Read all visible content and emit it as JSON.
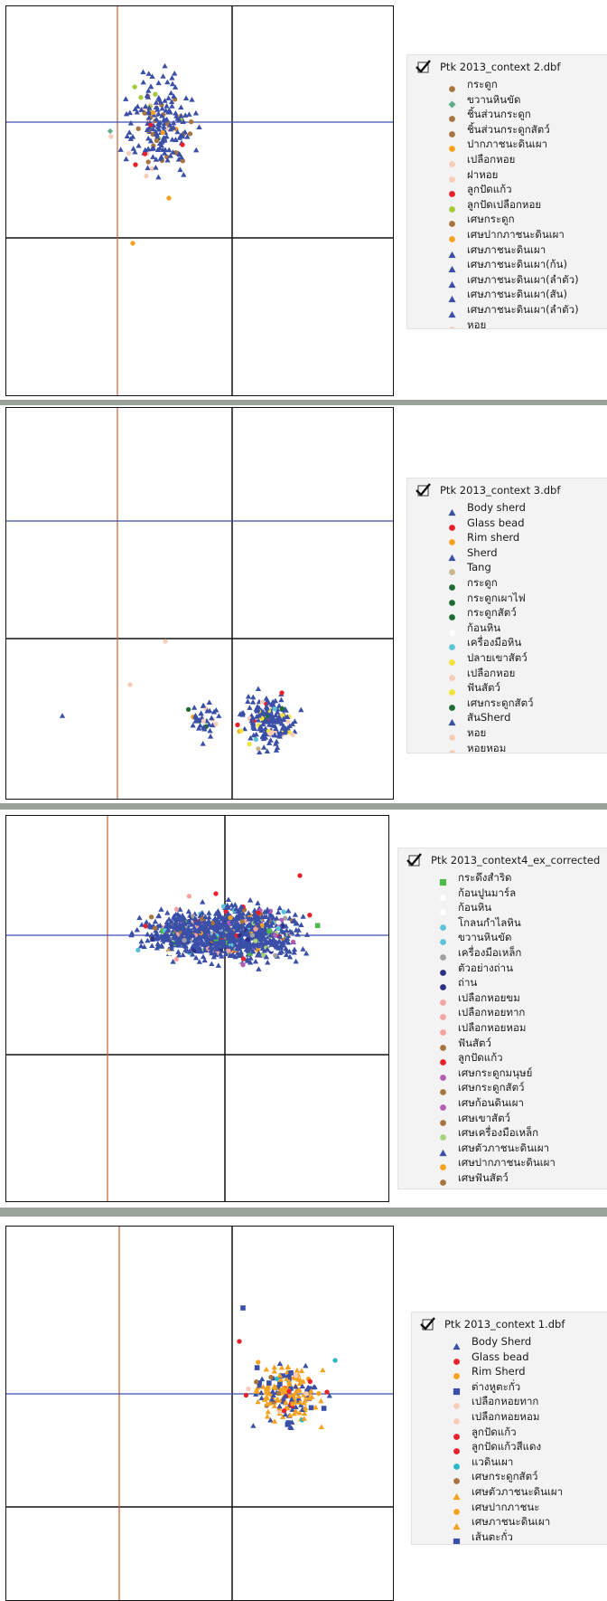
{
  "chart_data": [
    {
      "type": "scatter",
      "layer_name": "Ptk 2013_context 2.dbf",
      "series": [
        {
          "name": "กระดูก",
          "color": "#a9753e",
          "marker": "circle"
        },
        {
          "name": "ขวานหินขัด",
          "color": "#5fae89",
          "marker": "diamond"
        },
        {
          "name": "ชิ้นส่วนกระดูก",
          "color": "#a9753e",
          "marker": "circle"
        },
        {
          "name": "ชิ้นส่วนกระดูกสัตว์",
          "color": "#a9753e",
          "marker": "circle"
        },
        {
          "name": "ปากภาชนะดินเผา",
          "color": "#f6a21e",
          "marker": "circle"
        },
        {
          "name": "เปลือกหอย",
          "color": "#f8cdb8",
          "marker": "circle"
        },
        {
          "name": "ฝาหอย",
          "color": "#f8cdb8",
          "marker": "circle"
        },
        {
          "name": "ลูกปัดแก้ว",
          "color": "#e8202a",
          "marker": "circle"
        },
        {
          "name": "ลูกปัดเปลือกหอย",
          "color": "#a6c93c",
          "marker": "circle"
        },
        {
          "name": "เศษกระดูก",
          "color": "#a9753e",
          "marker": "circle"
        },
        {
          "name": "เศษปากภาชนะดินเผา",
          "color": "#f6a21e",
          "marker": "circle"
        },
        {
          "name": "เศษภาชนะดินเผา",
          "color": "#3a4fa8",
          "marker": "triangle"
        },
        {
          "name": "เศษภาชนะดินเผา(ก้น)",
          "color": "#3a4fa8",
          "marker": "triangle"
        },
        {
          "name": "เศษภาชนะดินเผา(ลำตัว)",
          "color": "#3a4fa8",
          "marker": "triangle"
        },
        {
          "name": "เศษภาชนะดินเผา(สัน)",
          "color": "#3a4fa8",
          "marker": "triangle"
        },
        {
          "name": "เศษภาชนะดินเผา(ลำตัว)",
          "color": "#3a4fa8",
          "marker": "triangle"
        },
        {
          "name": "หอย",
          "color": "#f8cdb8",
          "marker": "circle"
        }
      ]
    },
    {
      "type": "scatter",
      "layer_name": "Ptk 2013_context 3.dbf",
      "series": [
        {
          "name": "Body sherd",
          "color": "#3a4fa8",
          "marker": "triangle"
        },
        {
          "name": "Glass bead",
          "color": "#e8202a",
          "marker": "circle"
        },
        {
          "name": "Rim sherd",
          "color": "#f6a21e",
          "marker": "circle"
        },
        {
          "name": "Sherd",
          "color": "#3a4fa8",
          "marker": "triangle"
        },
        {
          "name": "Tang",
          "color": "#c9b48c",
          "marker": "circle"
        },
        {
          "name": "กระดูก",
          "color": "#1f6b35",
          "marker": "circle"
        },
        {
          "name": "กระดูกเผาไฟ",
          "color": "#1f6b35",
          "marker": "circle"
        },
        {
          "name": "กระดูกสัตว์",
          "color": "#1f6b35",
          "marker": "circle"
        },
        {
          "name": "ก้อนหิน",
          "color": "#ffffff",
          "marker": "circle"
        },
        {
          "name": "เครื่องมือหิน",
          "color": "#5cc4d6",
          "marker": "circle"
        },
        {
          "name": "ปลายเขาสัตว์",
          "color": "#f2e43a",
          "marker": "circle"
        },
        {
          "name": "เปลือกหอย",
          "color": "#f8cdb8",
          "marker": "circle"
        },
        {
          "name": "ฟันสัตว์",
          "color": "#f2e43a",
          "marker": "circle"
        },
        {
          "name": "เศษกระดูกสัตว์",
          "color": "#1f6b35",
          "marker": "circle"
        },
        {
          "name": "สันSherd",
          "color": "#3a4fa8",
          "marker": "triangle"
        },
        {
          "name": "หอย",
          "color": "#f8cdb8",
          "marker": "circle"
        },
        {
          "name": "หอยหอม",
          "color": "#f8cdb8",
          "marker": "circle"
        }
      ]
    },
    {
      "type": "scatter",
      "layer_name": "Ptk 2013_context4_ex_corrected",
      "series": [
        {
          "name": "กระดึงสำริด",
          "color": "#4dba4a",
          "marker": "square"
        },
        {
          "name": "ก้อนปูนมาร์ล",
          "color": "#ffffff",
          "marker": "circle"
        },
        {
          "name": "ก้อนหิน",
          "color": "#ffffff",
          "marker": "circle"
        },
        {
          "name": "โกลนกำไลหิน",
          "color": "#5cc4d6",
          "marker": "circle"
        },
        {
          "name": "ขวานหินขัด",
          "color": "#5cc4d6",
          "marker": "circle"
        },
        {
          "name": "เครื่องมือเหล็ก",
          "color": "#a0a0a0",
          "marker": "circle"
        },
        {
          "name": "ตัวอย่างถ่าน",
          "color": "#2c2f86",
          "marker": "circle"
        },
        {
          "name": "ถ่าน",
          "color": "#2c2f86",
          "marker": "circle"
        },
        {
          "name": "เปลือกหอยขม",
          "color": "#f4a3a0",
          "marker": "circle"
        },
        {
          "name": "เปลือกหอยทาก",
          "color": "#f4a3a0",
          "marker": "circle"
        },
        {
          "name": "เปลือกหอยหอม",
          "color": "#f4a3a0",
          "marker": "circle"
        },
        {
          "name": "ฟันสัตว์",
          "color": "#a9753e",
          "marker": "circle"
        },
        {
          "name": "ลูกปัดแก้ว",
          "color": "#e8202a",
          "marker": "circle"
        },
        {
          "name": "เศษกระดูกมนุษย์",
          "color": "#b45cb8",
          "marker": "circle"
        },
        {
          "name": "เศษกระดูกสัตว์",
          "color": "#a9753e",
          "marker": "circle"
        },
        {
          "name": "เศษก้อนดินเผา",
          "color": "#b45cb8",
          "marker": "circle"
        },
        {
          "name": "เศษเขาสัตว์",
          "color": "#a9753e",
          "marker": "circle"
        },
        {
          "name": "เศษเครื่องมือเหล็ก",
          "color": "#a6d67a",
          "marker": "circle"
        },
        {
          "name": "เศษตัวภาชนะดินเผา",
          "color": "#3a4fa8",
          "marker": "triangle"
        },
        {
          "name": "เศษปากภาชนะดินเผา",
          "color": "#f6a21e",
          "marker": "circle"
        },
        {
          "name": "เศษฟันสัตว์",
          "color": "#a9753e",
          "marker": "circle"
        }
      ]
    },
    {
      "type": "scatter",
      "layer_name": "Ptk 2013_context 1.dbf",
      "series": [
        {
          "name": "Body Sherd",
          "color": "#3a4fa8",
          "marker": "triangle"
        },
        {
          "name": "Glass bead",
          "color": "#e8202a",
          "marker": "circle"
        },
        {
          "name": "Rim Sherd",
          "color": "#f6a21e",
          "marker": "circle"
        },
        {
          "name": "ต่างหูตะกั่ว",
          "color": "#3a4fa8",
          "marker": "square"
        },
        {
          "name": "เปลือกหอยทาก",
          "color": "#f8cdb8",
          "marker": "circle"
        },
        {
          "name": "เปลือกหอยหอม",
          "color": "#f8cdb8",
          "marker": "circle"
        },
        {
          "name": "ลูกปัดแก้ว",
          "color": "#e8202a",
          "marker": "circle"
        },
        {
          "name": "ลูกปัดแก้วสีแดง",
          "color": "#e8202a",
          "marker": "circle"
        },
        {
          "name": "แวดินเผา",
          "color": "#2bb6c8",
          "marker": "circle"
        },
        {
          "name": "เศษกระดูกสัตว์",
          "color": "#a9753e",
          "marker": "circle"
        },
        {
          "name": "เศษตัวภาชนะดินเผา",
          "color": "#f6a21e",
          "marker": "triangle"
        },
        {
          "name": "เศษปากภาชนะ",
          "color": "#f6a21e",
          "marker": "circle"
        },
        {
          "name": "เศษภาชนะดินเผา",
          "color": "#f6a21e",
          "marker": "triangle"
        },
        {
          "name": "เส้นตะกั่ว",
          "color": "#3a4fa8",
          "marker": "square"
        }
      ]
    }
  ],
  "colors": {
    "background": "#9aa39a",
    "vertical_line": "#c0603a",
    "horizontal_line": "#3a4fb0",
    "grid_line": "#111111"
  }
}
